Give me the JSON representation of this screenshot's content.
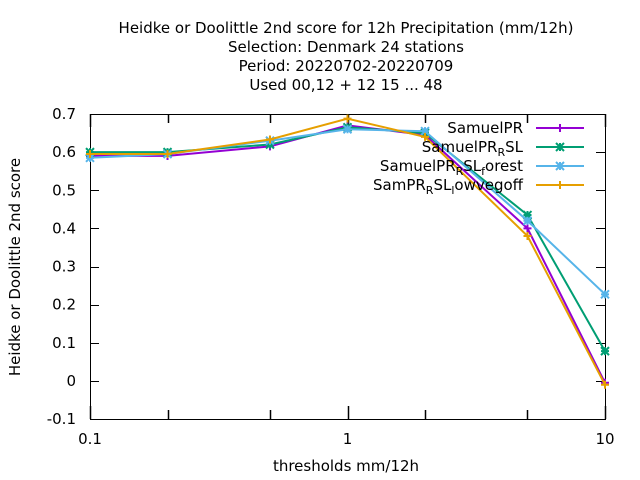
{
  "chart_data": {
    "type": "line",
    "title_lines": [
      "Heidke or Doolittle 2nd score  for 12h Precipitation (mm/12h)",
      "Selection: Denmark     24 stations",
      "Period: 20220702-20220709",
      "Used  00,12  + 12 15 ... 48"
    ],
    "xlabel": "thresholds mm/12h",
    "ylabel": "Heidke or Doolittle 2nd score",
    "xscale": "log",
    "xlim": [
      0.1,
      10
    ],
    "ylim": [
      -0.1,
      0.7
    ],
    "xtick_labels": [
      "0.1",
      "1",
      "10"
    ],
    "ytick_labels": [
      "-0.1",
      "0",
      "0.1",
      "0.2",
      "0.3",
      "0.4",
      "0.5",
      "0.6",
      "0.7"
    ],
    "legend_position": "top-right",
    "x": [
      0.1,
      0.2,
      0.5,
      1,
      2,
      5,
      10
    ],
    "series": [
      {
        "name": "SamuelPR",
        "legend_base": "SamuelPR",
        "legend_sub": "",
        "legend_rest": "",
        "legend_sub2": "",
        "legend_rest2": "",
        "color": "#9400d3",
        "marker": "plus",
        "values": [
          0.59,
          0.59,
          0.615,
          0.67,
          0.645,
          0.4,
          -0.005
        ]
      },
      {
        "name": "SamuelPR_RSL",
        "legend_base": "SamuelPR",
        "legend_sub": "R",
        "legend_rest": "SL",
        "legend_sub2": "",
        "legend_rest2": "",
        "color": "#009e73",
        "marker": "star",
        "values": [
          0.6,
          0.6,
          0.62,
          0.665,
          0.65,
          0.435,
          0.078
        ]
      },
      {
        "name": "SamuelPR_RSL_forest",
        "legend_base": "SamuelPR",
        "legend_sub": "R",
        "legend_rest": "SL",
        "legend_sub2": "f",
        "legend_rest2": "orest",
        "color": "#56b4e9",
        "marker": "star",
        "values": [
          0.585,
          0.595,
          0.63,
          0.66,
          0.655,
          0.42,
          0.227
        ]
      },
      {
        "name": "SamPR_RSL_lowvegoff",
        "legend_base": "SamPR",
        "legend_sub": "R",
        "legend_rest": "SL",
        "legend_sub2": "l",
        "legend_rest2": "owvegoff",
        "color": "#e69f00",
        "marker": "plus",
        "values": [
          0.595,
          0.595,
          0.633,
          0.688,
          0.64,
          0.38,
          -0.01
        ]
      }
    ]
  }
}
